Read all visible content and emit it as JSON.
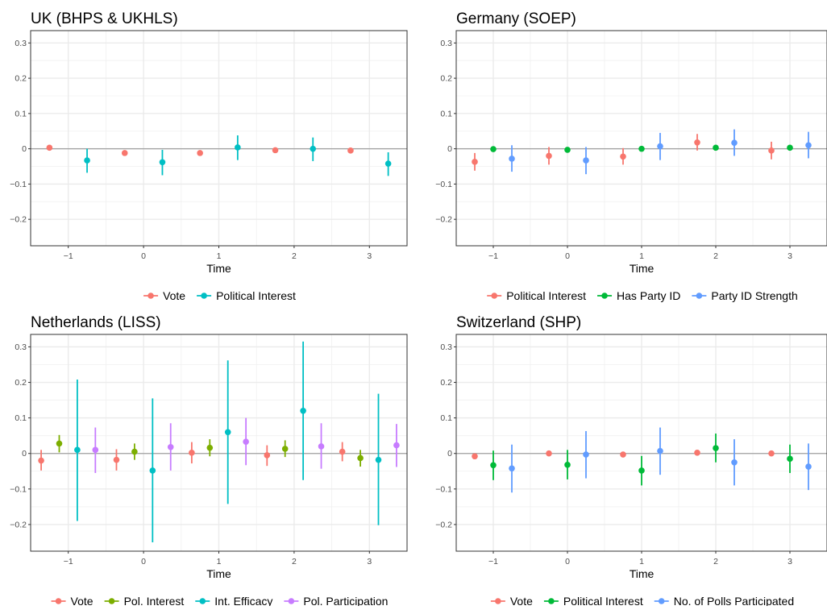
{
  "chart_data": [
    {
      "type": "scatter",
      "subtype": "point-range",
      "title": "UK (BHPS & UKHLS)",
      "xlabel": "Time",
      "ylabel": "",
      "x_ticks": [
        "−1",
        "0",
        "1",
        "2",
        "3"
      ],
      "y_ticks": [
        "−0.2",
        "−0.1",
        "0",
        "0.1",
        "0.2",
        "0.3"
      ],
      "xlim": [
        -1.5,
        3.5
      ],
      "ylim": [
        -0.275,
        0.335
      ],
      "grid": true,
      "legend_position": "bottom",
      "x": [
        -1,
        0,
        1,
        2,
        3
      ],
      "series": [
        {
          "name": "Vote",
          "color": "#F8766D",
          "values": [
            0.003,
            -0.012,
            -0.012,
            -0.004,
            -0.005
          ],
          "lower": [
            0.003,
            -0.012,
            -0.012,
            -0.004,
            -0.005
          ],
          "upper": [
            0.003,
            -0.012,
            -0.012,
            -0.004,
            -0.005
          ]
        },
        {
          "name": "Political Interest",
          "color": "#00BFC4",
          "values": [
            -0.033,
            -0.038,
            0.004,
            0.0,
            -0.042
          ],
          "lower": [
            -0.068,
            -0.075,
            -0.032,
            -0.035,
            -0.077
          ],
          "upper": [
            0.0,
            -0.003,
            0.038,
            0.032,
            -0.01
          ]
        }
      ]
    },
    {
      "type": "scatter",
      "subtype": "point-range",
      "title": "Germany (SOEP)",
      "xlabel": "Time",
      "ylabel": "",
      "x_ticks": [
        "−1",
        "0",
        "1",
        "2",
        "3"
      ],
      "y_ticks": [
        "−0.2",
        "−0.1",
        "0",
        "0.1",
        "0.2",
        "0.3"
      ],
      "xlim": [
        -1.5,
        3.5
      ],
      "ylim": [
        -0.275,
        0.335
      ],
      "grid": true,
      "legend_position": "bottom",
      "x": [
        -1,
        0,
        1,
        2,
        3
      ],
      "series": [
        {
          "name": "Political Interest",
          "color": "#F8766D",
          "values": [
            -0.037,
            -0.02,
            -0.022,
            0.018,
            -0.005
          ],
          "lower": [
            -0.062,
            -0.045,
            -0.045,
            -0.005,
            -0.03
          ],
          "upper": [
            -0.012,
            0.005,
            0.002,
            0.042,
            0.02
          ]
        },
        {
          "name": "Has Party ID",
          "color": "#00BA38",
          "values": [
            -0.001,
            -0.003,
            0.0,
            0.003,
            0.003
          ],
          "lower": [
            -0.001,
            -0.003,
            0.0,
            0.003,
            0.003
          ],
          "upper": [
            -0.001,
            -0.003,
            0.0,
            0.003,
            0.003
          ]
        },
        {
          "name": "Party ID Strength",
          "color": "#619CFF",
          "values": [
            -0.028,
            -0.033,
            0.007,
            0.017,
            0.01
          ],
          "lower": [
            -0.065,
            -0.072,
            -0.032,
            -0.02,
            -0.027
          ],
          "upper": [
            0.01,
            0.005,
            0.045,
            0.055,
            0.048
          ]
        }
      ]
    },
    {
      "type": "scatter",
      "subtype": "point-range",
      "title": "Netherlands (LISS)",
      "xlabel": "Time",
      "ylabel": "",
      "x_ticks": [
        "−1",
        "0",
        "1",
        "2",
        "3"
      ],
      "y_ticks": [
        "−0.2",
        "−0.1",
        "0",
        "0.1",
        "0.2",
        "0.3"
      ],
      "xlim": [
        -1.5,
        3.5
      ],
      "ylim": [
        -0.275,
        0.335
      ],
      "grid": true,
      "legend_position": "bottom",
      "x": [
        -1,
        0,
        1,
        2,
        3
      ],
      "series": [
        {
          "name": "Vote",
          "color": "#F8766D",
          "values": [
            -0.02,
            -0.018,
            0.002,
            -0.005,
            0.005
          ],
          "lower": [
            -0.048,
            -0.048,
            -0.028,
            -0.035,
            -0.022
          ],
          "upper": [
            0.01,
            0.012,
            0.032,
            0.023,
            0.032
          ]
        },
        {
          "name": "Pol. Interest",
          "color": "#7CAE00",
          "values": [
            0.028,
            0.005,
            0.016,
            0.013,
            -0.013
          ],
          "lower": [
            0.003,
            -0.018,
            -0.008,
            -0.01,
            -0.037
          ],
          "upper": [
            0.052,
            0.028,
            0.04,
            0.037,
            0.01
          ]
        },
        {
          "name": "Int. Efficacy",
          "color": "#00BFC4",
          "values": [
            0.01,
            -0.048,
            0.06,
            0.12,
            -0.018
          ],
          "lower": [
            -0.19,
            -0.25,
            -0.142,
            -0.075,
            -0.202
          ],
          "upper": [
            0.208,
            0.155,
            0.262,
            0.315,
            0.168
          ]
        },
        {
          "name": "Pol. Participation",
          "color": "#C77CFF",
          "values": [
            0.01,
            0.018,
            0.033,
            0.02,
            0.023
          ],
          "lower": [
            -0.055,
            -0.048,
            -0.033,
            -0.043,
            -0.038
          ],
          "upper": [
            0.073,
            0.085,
            0.1,
            0.085,
            0.083
          ]
        }
      ]
    },
    {
      "type": "scatter",
      "subtype": "point-range",
      "title": "Switzerland (SHP)",
      "xlabel": "Time",
      "ylabel": "",
      "x_ticks": [
        "−1",
        "0",
        "1",
        "2",
        "3"
      ],
      "y_ticks": [
        "−0.2",
        "−0.1",
        "0",
        "0.1",
        "0.2",
        "0.3"
      ],
      "xlim": [
        -1.5,
        3.5
      ],
      "ylim": [
        -0.275,
        0.335
      ],
      "grid": true,
      "legend_position": "bottom",
      "x": [
        -1,
        0,
        1,
        2,
        3
      ],
      "series": [
        {
          "name": "Vote",
          "color": "#F8766D",
          "values": [
            -0.008,
            0.0,
            -0.003,
            0.002,
            0.0
          ],
          "lower": [
            -0.008,
            0.0,
            -0.003,
            0.002,
            0.0
          ],
          "upper": [
            -0.008,
            0.0,
            -0.003,
            0.002,
            0.0
          ]
        },
        {
          "name": "Political Interest",
          "color": "#00BA38",
          "values": [
            -0.033,
            -0.032,
            -0.048,
            0.015,
            -0.015
          ],
          "lower": [
            -0.075,
            -0.073,
            -0.09,
            -0.025,
            -0.055
          ],
          "upper": [
            0.008,
            0.01,
            -0.007,
            0.056,
            0.025
          ]
        },
        {
          "name": "No. of Polls Participated",
          "color": "#619CFF",
          "values": [
            -0.042,
            -0.003,
            0.007,
            -0.025,
            -0.037
          ],
          "lower": [
            -0.11,
            -0.07,
            -0.06,
            -0.09,
            -0.103
          ],
          "upper": [
            0.025,
            0.063,
            0.073,
            0.04,
            0.028
          ]
        }
      ]
    }
  ]
}
